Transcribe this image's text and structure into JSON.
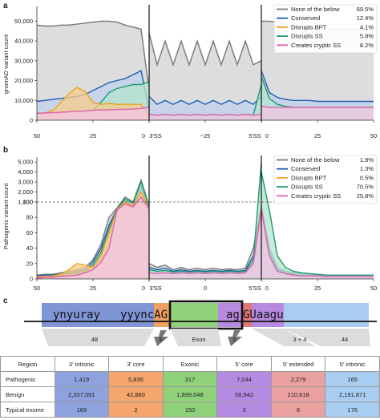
{
  "panels": {
    "a": {
      "letter": "a",
      "ylabel": "gnomAD variant count",
      "yticks": [
        "0",
        "10,000",
        "20,000",
        "30,000",
        "40,000",
        "50,000"
      ],
      "xticks": [
        "50",
        "25",
        "0",
        "3′SS",
        "−25",
        "5′SS",
        "0",
        "25",
        "50"
      ]
    },
    "b": {
      "letter": "b",
      "ylabel": "Pathogenic variant count",
      "yticks": [
        "0",
        "20",
        "40",
        "60",
        "80",
        "100",
        "1,000",
        "2,000",
        "3,000",
        "4,000",
        "5,000"
      ],
      "xticks": [
        "50",
        "25",
        "0",
        "3′SS",
        "0",
        "5′SS",
        "0",
        "25",
        "50"
      ]
    },
    "c": {
      "letter": "c"
    }
  },
  "legend_a": [
    {
      "name": "None of the below",
      "pct": "69.5%",
      "color": "#777777"
    },
    {
      "name": "Conserved",
      "pct": "12.4%",
      "color": "#1f5fb0"
    },
    {
      "name": "Disrupts BPT",
      "pct": "4.1%",
      "color": "#f0a020"
    },
    {
      "name": "Disrupts SS",
      "pct": "5.8%",
      "color": "#1e9a6b"
    },
    {
      "name": "Creates cryptic SS",
      "pct": "8.2%",
      "color": "#e060b0"
    }
  ],
  "legend_b": [
    {
      "name": "None of the below",
      "pct": "1.9%",
      "color": "#777777"
    },
    {
      "name": "Conserved",
      "pct": "1.3%",
      "color": "#1f5fb0"
    },
    {
      "name": "Disrupts BPT",
      "pct": "0.5%",
      "color": "#f0a020"
    },
    {
      "name": "Disrupts SS",
      "pct": "70.5%",
      "color": "#1e9a6b"
    },
    {
      "name": "Creates cryptic SS",
      "pct": "25.8%",
      "color": "#e060b0"
    }
  ],
  "chart_data": [
    {
      "type": "area",
      "panel": "a",
      "ylabel": "gnomAD variant count",
      "ylim": [
        0,
        55000
      ],
      "legend": "top-right",
      "segments": [
        {
          "x_ticks": [
            "50",
            "25",
            "0"
          ],
          "series": {
            "none_of_the_below": [
              48000,
              47500,
              47500,
              48000,
              48000,
              48500,
              49000,
              49500,
              50000,
              50000,
              49500,
              48000,
              47000,
              46000,
              15000
            ],
            "conserved": [
              9500,
              10000,
              10500,
              11000,
              11500,
              12000,
              13000,
              15000,
              17000,
              19000,
              20000,
              21000,
              23000,
              25000,
              5000
            ],
            "disrupts_bpt": [
              3500,
              3700,
              5000,
              9000,
              13500,
              16500,
              14500,
              9000,
              8000,
              8500,
              8000,
              8000,
              8000,
              8000,
              2000
            ],
            "disrupts_ss": [
              3500,
              3600,
              3800,
              4000,
              4200,
              4500,
              4700,
              5000,
              9000,
              14000,
              16000,
              17000,
              18000,
              18000,
              19500
            ],
            "creates_cryptic_ss": [
              3500,
              3600,
              3800,
              4000,
              4200,
              4500,
              4700,
              5000,
              5200,
              5300,
              5400,
              5500,
              5600,
              6000,
              6500
            ]
          }
        },
        {
          "x_ticks": [
            "3′SS",
            "−25",
            "5′SS"
          ],
          "series": {
            "none_of_the_below": [
              44000,
              28000,
              40000,
              28000,
              40000,
              28000,
              40000,
              28000,
              40000,
              28000,
              40000,
              28000,
              40000,
              28000,
              30000
            ],
            "conserved": [
              12000,
              8000,
              10000,
              8000,
              10000,
              8000,
              10000,
              8000,
              10000,
              8000,
              10000,
              8000,
              10000,
              8000,
              12000
            ],
            "disrupts_bpt": [
              0,
              0,
              0,
              0,
              0,
              0,
              0,
              0,
              0,
              0,
              0,
              0,
              0,
              0,
              0
            ],
            "disrupts_ss": [
              3000,
              2500,
              3000,
              2500,
              3000,
              2500,
              3000,
              2500,
              3000,
              2500,
              3000,
              2500,
              3000,
              2500,
              18000
            ],
            "creates_cryptic_ss": [
              3000,
              2500,
              3000,
              2500,
              3000,
              2500,
              3000,
              2500,
              3000,
              2500,
              3000,
              2500,
              3000,
              2500,
              3000
            ]
          }
        },
        {
          "x_ticks": [
            "0",
            "25",
            "50"
          ],
          "series": {
            "none_of_the_below": [
              50000,
              50000,
              49500,
              48500,
              47500,
              47000,
              46500,
              46000,
              46000,
              46000,
              46000,
              46000,
              46000,
              46000,
              46000
            ],
            "conserved": [
              25000,
              14000,
              11500,
              10500,
              10000,
              10000,
              10000,
              9500,
              9500,
              9500,
              9500,
              9500,
              9500,
              9500,
              9500
            ],
            "disrupts_bpt": [
              0,
              0,
              0,
              0,
              0,
              0,
              0,
              0,
              0,
              0,
              0,
              0,
              0,
              0,
              0
            ],
            "disrupts_ss": [
              22000,
              11000,
              8000,
              7000,
              6500,
              6500,
              6500,
              6500,
              6500,
              6500,
              6500,
              6500,
              6500,
              6500,
              6500
            ],
            "creates_cryptic_ss": [
              7000,
              6500,
              6500,
              6500,
              6500,
              6500,
              6500,
              6500,
              6500,
              6500,
              6500,
              6500,
              6500,
              6500,
              6500
            ]
          }
        }
      ]
    },
    {
      "type": "area",
      "panel": "b",
      "ylabel": "Pathogenic variant count",
      "ylim": [
        0,
        5500
      ],
      "y_scale": "broken: linear 0–100 below, 1,000–5,000 above",
      "legend": "top-right",
      "segments": [
        {
          "x_ticks": [
            "50",
            "25",
            "0"
          ],
          "series": {
            "none_of_the_below": [
              5,
              6,
              6,
              8,
              10,
              12,
              15,
              25,
              45,
              80,
              400,
              1500,
              1000,
              3200,
              600
            ],
            "conserved": [
              4,
              5,
              5,
              6,
              8,
              10,
              12,
              22,
              40,
              70,
              300,
              1200,
              800,
              2500,
              500
            ],
            "disrupts_bpt": [
              3,
              3,
              4,
              6,
              12,
              20,
              18,
              15,
              30,
              60,
              250,
              1000,
              600,
              2000,
              400
            ],
            "disrupts_ss": [
              2,
              2,
              3,
              4,
              6,
              8,
              10,
              18,
              35,
              65,
              300,
              1300,
              900,
              3000,
              600
            ],
            "creates_cryptic_ss": [
              1,
              2,
              2,
              3,
              4,
              5,
              8,
              12,
              22,
              40,
              200,
              800,
              500,
              1500,
              300
            ]
          }
        },
        {
          "x_ticks": [
            "3′SS",
            "0",
            "5′SS"
          ],
          "series": {
            "none_of_the_below": [
              20,
              15,
              18,
              12,
              15,
              12,
              14,
              12,
              14,
              12,
              13,
              12,
              14,
              40,
              600
            ],
            "conserved": [
              15,
              12,
              14,
              10,
              12,
              10,
              11,
              10,
              11,
              10,
              11,
              10,
              11,
              30,
              500
            ],
            "disrupts_bpt": [
              0,
              0,
              0,
              0,
              0,
              0,
              0,
              0,
              0,
              0,
              0,
              0,
              0,
              0,
              0
            ],
            "disrupts_ss": [
              12,
              10,
              11,
              9,
              10,
              9,
              10,
              9,
              10,
              9,
              10,
              9,
              10,
              25,
              5000
            ],
            "creates_cryptic_ss": [
              8,
              7,
              8,
              7,
              8,
              7,
              8,
              7,
              8,
              7,
              8,
              7,
              8,
              20,
              300
            ]
          }
        },
        {
          "x_ticks": [
            "0",
            "25",
            "50"
          ],
          "series": {
            "none_of_the_below": [
              600,
              40,
              15,
              10,
              8,
              7,
              6,
              6,
              5,
              5,
              5,
              5,
              5,
              5,
              5
            ],
            "conserved": [
              500,
              35,
              12,
              8,
              6,
              5,
              5,
              5,
              4,
              4,
              4,
              4,
              4,
              4,
              4
            ],
            "disrupts_bpt": [
              0,
              0,
              0,
              0,
              0,
              0,
              0,
              0,
              0,
              0,
              0,
              0,
              0,
              0,
              0
            ],
            "disrupts_ss": [
              4000,
              200,
              30,
              15,
              10,
              8,
              7,
              6,
              5,
              5,
              5,
              5,
              5,
              5,
              5
            ],
            "creates_cryptic_ss": [
              300,
              30,
              10,
              7,
              5,
              4,
              4,
              4,
              3,
              3,
              3,
              3,
              3,
              3,
              3
            ]
          }
        }
      ]
    },
    {
      "type": "table",
      "panel": "c",
      "columns": [
        "Region",
        "3′ intronic",
        "3′ core",
        "Exonic",
        "5′ core",
        "5′ extended",
        "5′ intronic"
      ],
      "rows": [
        {
          "label": "Pathogenic",
          "values": [
            "1,419",
            "5,835",
            "317",
            "7,044",
            "2,279",
            "165"
          ]
        },
        {
          "label": "Benign",
          "values": [
            "2,357,091",
            "42,880",
            "1,899,048",
            "58,942",
            "210,618",
            "2,191,871"
          ]
        },
        {
          "label": "Typical exome",
          "values": [
            "169",
            "2",
            "150",
            "3",
            "6",
            "176"
          ]
        }
      ]
    }
  ],
  "diagram": {
    "seq_left": "ynyuray",
    "seq_mid": "yyyncAG",
    "seq_right": "ag",
    "seq_right2": "GUaagu",
    "labels": [
      "48",
      "3",
      "Exon",
      "3",
      "3 + 4",
      "44"
    ],
    "region_colors": {
      "intronic3": "#7f95d6",
      "core3": "#f0a060",
      "exon": "#8fd07a",
      "core5": "#b78ae0",
      "extended5": "#e07878",
      "intronic5": "#a8cdf0"
    }
  },
  "table": {
    "columns": [
      "Region",
      "3′ intronic",
      "3′ core",
      "Exonic",
      "5′ core",
      "5′ extended",
      "5′ intronic"
    ],
    "col_colors": [
      "#ffffff",
      "#8ea3de",
      "#f4a66c",
      "#8fd07a",
      "#b48be2",
      "#eba0a0",
      "#a8cdf0"
    ],
    "rows": [
      {
        "label": "Pathogenic",
        "values": [
          "1,419",
          "5,835",
          "317",
          "7,044",
          "2,279",
          "165"
        ]
      },
      {
        "label": "Benign",
        "values": [
          "2,357,091",
          "42,880",
          "1,899,048",
          "58,942",
          "210,618",
          "2,191,871"
        ]
      },
      {
        "label": "Typical exome",
        "values": [
          "169",
          "2",
          "150",
          "3",
          "6",
          "176"
        ]
      }
    ]
  }
}
